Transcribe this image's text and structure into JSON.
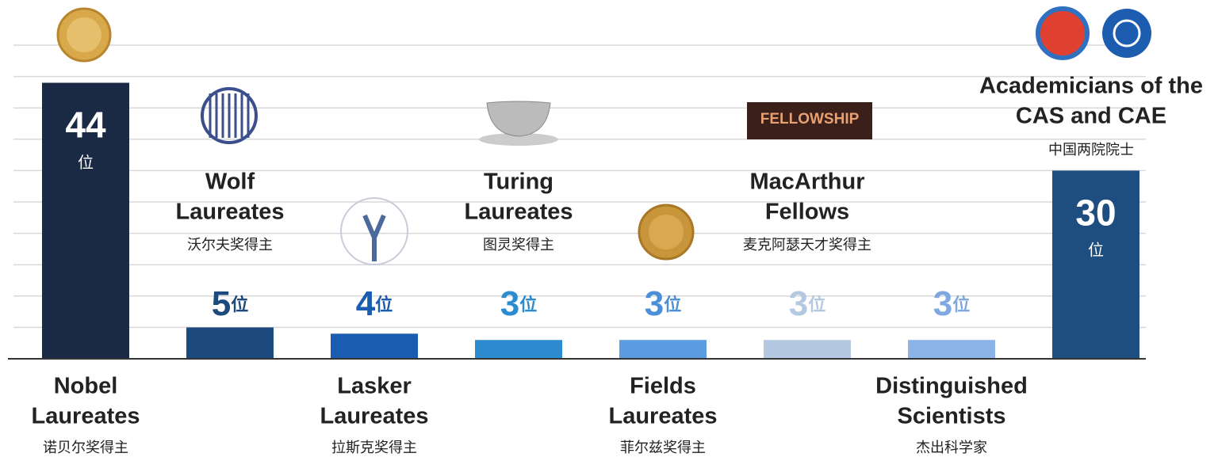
{
  "chart_data": {
    "type": "bar",
    "categories": [
      [
        "Nobel",
        "Laureates"
      ],
      [
        "Wolf",
        "Laureates"
      ],
      [
        "Lasker",
        "Laureates"
      ],
      [
        "Turing",
        "Laureates"
      ],
      [
        "Fields",
        "Laureates"
      ],
      [
        "MacArthur",
        "Fellows"
      ],
      [
        "Distinguished",
        "Scientists"
      ],
      [
        "Academicians of the",
        "CAS and CAE"
      ]
    ],
    "subtitles": [
      "诺贝尔奖得主",
      "沃尔夫奖得主",
      "拉斯克奖得主",
      "图灵奖得主",
      "菲尔兹奖得主",
      "麦克阿瑟天才奖得主",
      "杰出科学家",
      "中国两院院士"
    ],
    "values": [
      44,
      5,
      4,
      3,
      3,
      3,
      3,
      30
    ],
    "unit": "位",
    "colors": [
      "#1b2a44",
      "#1d4a7e",
      "#1a5cb0",
      "#2d8bd0",
      "#5b9be0",
      "#b5c8e2",
      "#8bb3e8",
      "#1e4d80"
    ],
    "ylim": [
      0,
      50
    ],
    "yticks": [
      0,
      5,
      10,
      15,
      20,
      25,
      30,
      35,
      40,
      45,
      50
    ],
    "grid": true,
    "macarthur_logo": "FELLOWSHIP"
  }
}
